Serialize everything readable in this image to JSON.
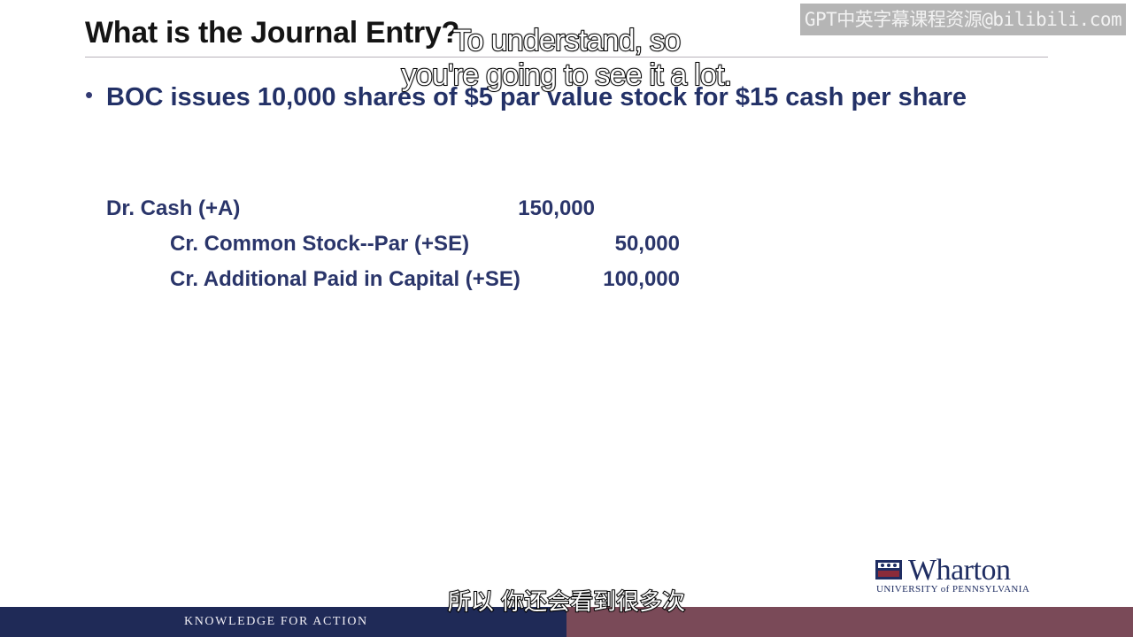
{
  "slide": {
    "title": "What is the Journal Entry?",
    "bullet": "BOC issues 10,000 shares of $5 par value stock for $15 cash per share",
    "entries": [
      {
        "label": "Dr. Cash (+A)",
        "amount": "150,000"
      },
      {
        "label": "Cr.  Common Stock--Par (+SE)",
        "amount": "50,000"
      },
      {
        "label": "Cr.  Additional Paid in Capital (+SE)",
        "amount": "100,000"
      }
    ]
  },
  "logo": {
    "name": "Wharton",
    "university": "UNIVERSITY of PENNSYLVANIA"
  },
  "footer": {
    "tagline": "KNOWLEDGE FOR ACTION"
  },
  "watermark": "GPT中英字幕课程资源@bilibili.com",
  "subtitles": {
    "en_line1": "To understand, so",
    "en_line2": "you're going to see it a lot.",
    "zh": "所以 你还会看到很多次"
  },
  "colors": {
    "heading": "#141414",
    "body": "#233167",
    "footer_left": "#1f2a57",
    "footer_right": "#7a4a58"
  }
}
